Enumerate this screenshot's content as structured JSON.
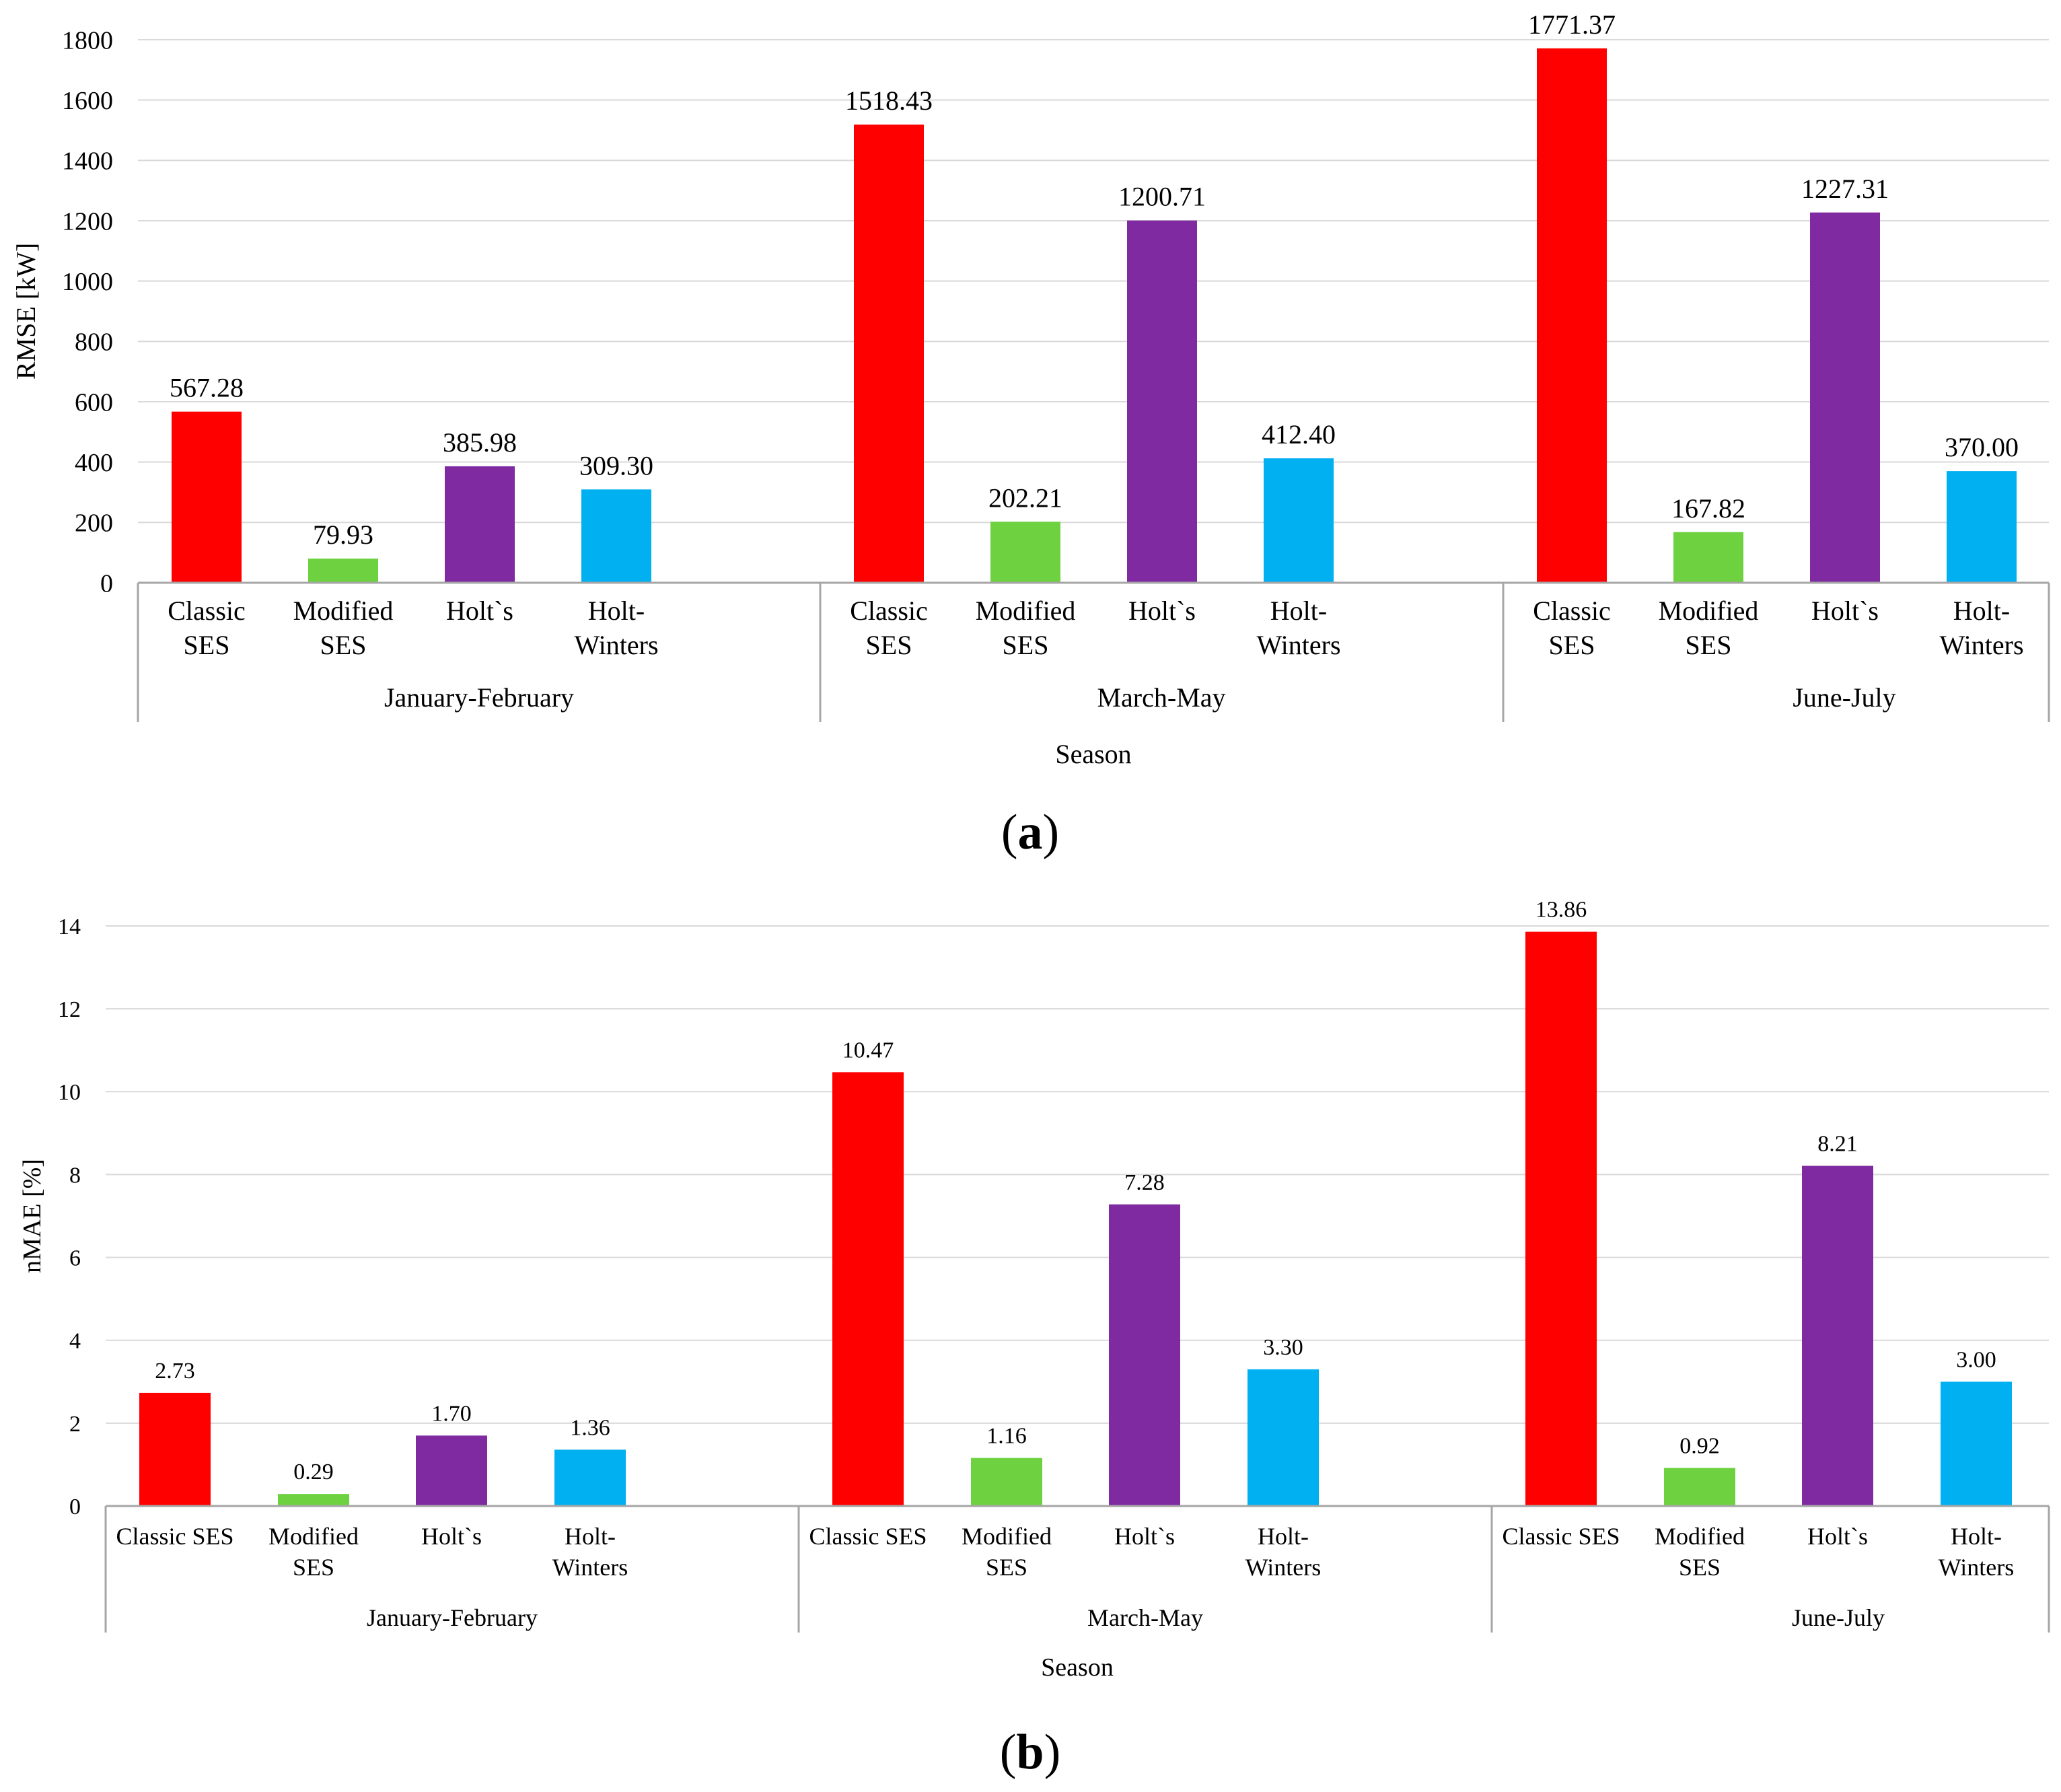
{
  "colors": {
    "classic_ses": "#ff0000",
    "modified_ses": "#6dd140",
    "holts": "#7f2aa0",
    "holt_winters": "#00b0f0",
    "grid": "#d9d9d9",
    "axis": "#a6a6a6"
  },
  "panels": {
    "a": {
      "open": "(",
      "letter": "a",
      "close": ")"
    },
    "b": {
      "open": "(",
      "letter": "b",
      "close": ")"
    }
  },
  "chart_data": [
    {
      "id": "a",
      "type": "bar",
      "ylabel": "RMSE [kW]",
      "xlabel": "Season",
      "ylim": [
        0,
        1800
      ],
      "yticks": [
        0,
        200,
        400,
        600,
        800,
        1000,
        1200,
        1400,
        1600,
        1800
      ],
      "grid": true,
      "groups": [
        "January-February",
        "March-May",
        "June-July"
      ],
      "category_labels": [
        [
          "Classic",
          "SES"
        ],
        [
          "Modified",
          "SES"
        ],
        [
          "Holt`s"
        ],
        [
          "Holt-",
          "Winters"
        ]
      ],
      "series": [
        {
          "name": "Classic SES",
          "color_key": "classic_ses",
          "values": [
            567.28,
            1518.43,
            1771.37
          ],
          "labels": [
            "567.28",
            "1518.43",
            "1771.37"
          ]
        },
        {
          "name": "Modified SES",
          "color_key": "modified_ses",
          "values": [
            79.93,
            202.21,
            167.82
          ],
          "labels": [
            "79.93",
            "202.21",
            "167.82"
          ]
        },
        {
          "name": "Holt`s",
          "color_key": "holts",
          "values": [
            385.98,
            1200.71,
            1227.31
          ],
          "labels": [
            "385.98",
            "1200.71",
            "1227.31"
          ]
        },
        {
          "name": "Holt-Winters",
          "color_key": "holt_winters",
          "values": [
            309.3,
            412.4,
            370.0
          ],
          "labels": [
            "309.30",
            "412.40",
            "370.00"
          ]
        }
      ]
    },
    {
      "id": "b",
      "type": "bar",
      "ylabel": "nMAE [%]",
      "xlabel": "Season",
      "ylim": [
        0,
        14
      ],
      "yticks": [
        0,
        2,
        4,
        6,
        8,
        10,
        12,
        14
      ],
      "grid": true,
      "groups": [
        "January-February",
        "March-May",
        "June-July"
      ],
      "category_labels": [
        [
          "Classic SES"
        ],
        [
          "Modified",
          "SES"
        ],
        [
          "Holt`s"
        ],
        [
          "Holt-",
          "Winters"
        ]
      ],
      "series": [
        {
          "name": "Classic SES",
          "color_key": "classic_ses",
          "values": [
            2.73,
            10.47,
            13.86
          ],
          "labels": [
            "2.73",
            "10.47",
            "13.86"
          ]
        },
        {
          "name": "Modified SES",
          "color_key": "modified_ses",
          "values": [
            0.29,
            1.16,
            0.92
          ],
          "labels": [
            "0.29",
            "1.16",
            "0.92"
          ]
        },
        {
          "name": "Holt`s",
          "color_key": "holts",
          "values": [
            1.7,
            7.28,
            8.21
          ],
          "labels": [
            "1.70",
            "7.28",
            "8.21"
          ]
        },
        {
          "name": "Holt-Winters",
          "color_key": "holt_winters",
          "values": [
            1.36,
            3.3,
            3.0
          ],
          "labels": [
            "1.36",
            "3.30",
            "3.00"
          ]
        }
      ]
    }
  ]
}
